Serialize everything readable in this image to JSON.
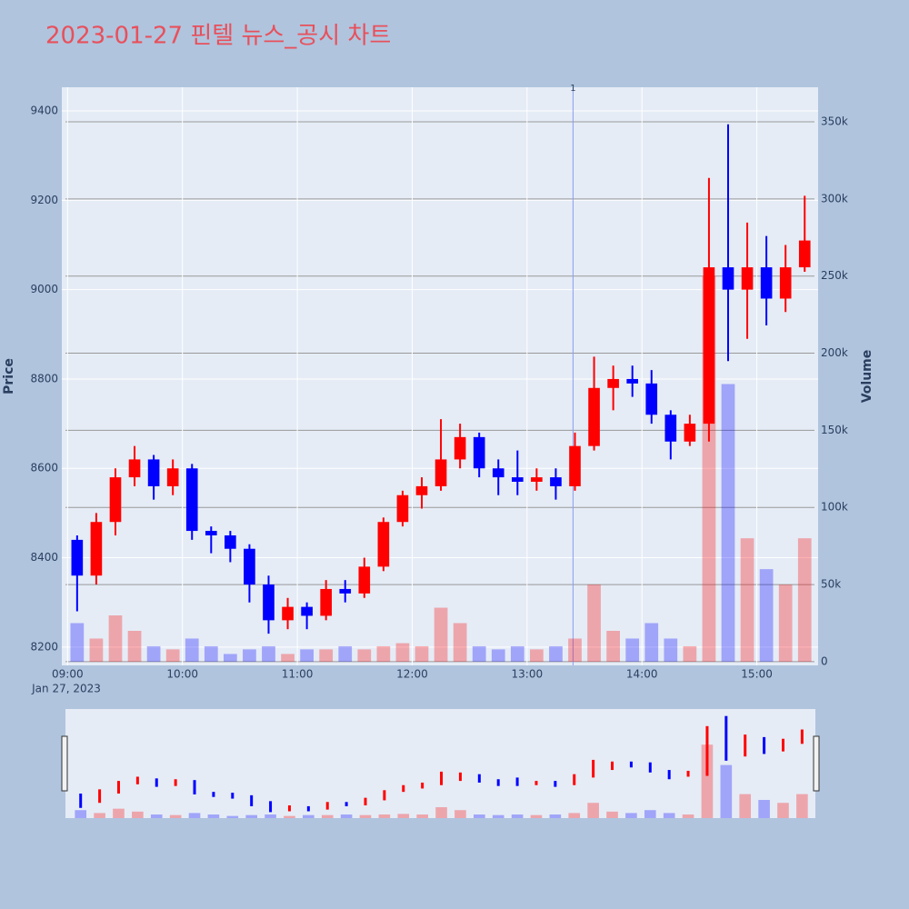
{
  "chart_data": {
    "type": "candlestick",
    "title": "2023-01-27 핀텔 뉴스_공시 차트",
    "y_label": "Price",
    "y2_label": "Volume",
    "x_date_label": "Jan 27, 2023",
    "x": [
      "09:00",
      "09:10",
      "09:20",
      "09:30",
      "09:40",
      "09:50",
      "10:00",
      "10:10",
      "10:20",
      "10:30",
      "10:40",
      "10:50",
      "11:00",
      "11:10",
      "11:20",
      "11:30",
      "11:40",
      "11:50",
      "12:00",
      "12:10",
      "12:20",
      "12:30",
      "12:40",
      "12:50",
      "13:00",
      "13:10",
      "13:20",
      "13:30",
      "13:40",
      "13:50",
      "14:00",
      "14:10",
      "14:20",
      "14:30",
      "14:40",
      "14:50",
      "15:00",
      "15:10",
      "15:20"
    ],
    "open": [
      8440,
      8360,
      8480,
      8580,
      8620,
      8560,
      8600,
      8460,
      8450,
      8420,
      8340,
      8260,
      8290,
      8270,
      8330,
      8320,
      8380,
      8480,
      8540,
      8560,
      8620,
      8670,
      8600,
      8580,
      8570,
      8580,
      8560,
      8650,
      8780,
      8800,
      8790,
      8720,
      8660,
      8700,
      9050,
      9000,
      9050,
      8980,
      9050
    ],
    "high": [
      8450,
      8500,
      8600,
      8650,
      8630,
      8620,
      8610,
      8470,
      8460,
      8430,
      8360,
      8310,
      8300,
      8350,
      8350,
      8400,
      8490,
      8550,
      8580,
      8710,
      8700,
      8680,
      8620,
      8640,
      8600,
      8600,
      8680,
      8850,
      8830,
      8830,
      8820,
      8730,
      8720,
      9250,
      9370,
      9150,
      9120,
      9100,
      9210
    ],
    "low": [
      8280,
      8340,
      8450,
      8560,
      8530,
      8540,
      8440,
      8410,
      8390,
      8300,
      8230,
      8240,
      8240,
      8260,
      8300,
      8310,
      8370,
      8470,
      8510,
      8550,
      8600,
      8580,
      8540,
      8540,
      8550,
      8530,
      8550,
      8640,
      8730,
      8760,
      8700,
      8620,
      8650,
      8660,
      8840,
      8890,
      8920,
      8950,
      9040
    ],
    "close": [
      8360,
      8480,
      8580,
      8620,
      8560,
      8600,
      8460,
      8450,
      8420,
      8340,
      8260,
      8290,
      8270,
      8330,
      8320,
      8380,
      8480,
      8540,
      8560,
      8620,
      8670,
      8600,
      8580,
      8570,
      8580,
      8560,
      8650,
      8780,
      8800,
      8790,
      8720,
      8660,
      8700,
      9050,
      9000,
      9050,
      8980,
      9050,
      9110
    ],
    "volume": [
      25000,
      15000,
      30000,
      20000,
      10000,
      8000,
      15000,
      10000,
      5000,
      8000,
      10000,
      5000,
      8000,
      8000,
      10000,
      8000,
      10000,
      12000,
      10000,
      35000,
      25000,
      10000,
      8000,
      10000,
      8000,
      10000,
      15000,
      50000,
      20000,
      15000,
      25000,
      15000,
      10000,
      250000,
      180000,
      80000,
      60000,
      50000,
      80000
    ],
    "up_color": "#ff0000",
    "down_color": "#0000ff",
    "xlim": [
      "08:57",
      "15:32"
    ],
    "xticks": [
      "09:00",
      "10:00",
      "11:00",
      "12:00",
      "13:00",
      "14:00",
      "15:00"
    ],
    "ylim": [
      8159,
      9453
    ],
    "yticks": [
      8200,
      8400,
      8600,
      8800,
      9000,
      9200,
      9400
    ],
    "y2lim": [
      -2400,
      372400
    ],
    "y2ticks": [
      0,
      {
        "value": 50000,
        "label": "50k"
      },
      {
        "value": 100000,
        "label": "100k"
      },
      {
        "value": 150000,
        "label": "150k"
      },
      {
        "value": 200000,
        "label": "200k"
      },
      {
        "value": 250000,
        "label": "250k"
      },
      {
        "value": 300000,
        "label": "300k"
      },
      {
        "value": 350000,
        "label": "350k"
      }
    ],
    "vline": {
      "x": "13:24",
      "label": "1"
    },
    "range_slider": true
  }
}
